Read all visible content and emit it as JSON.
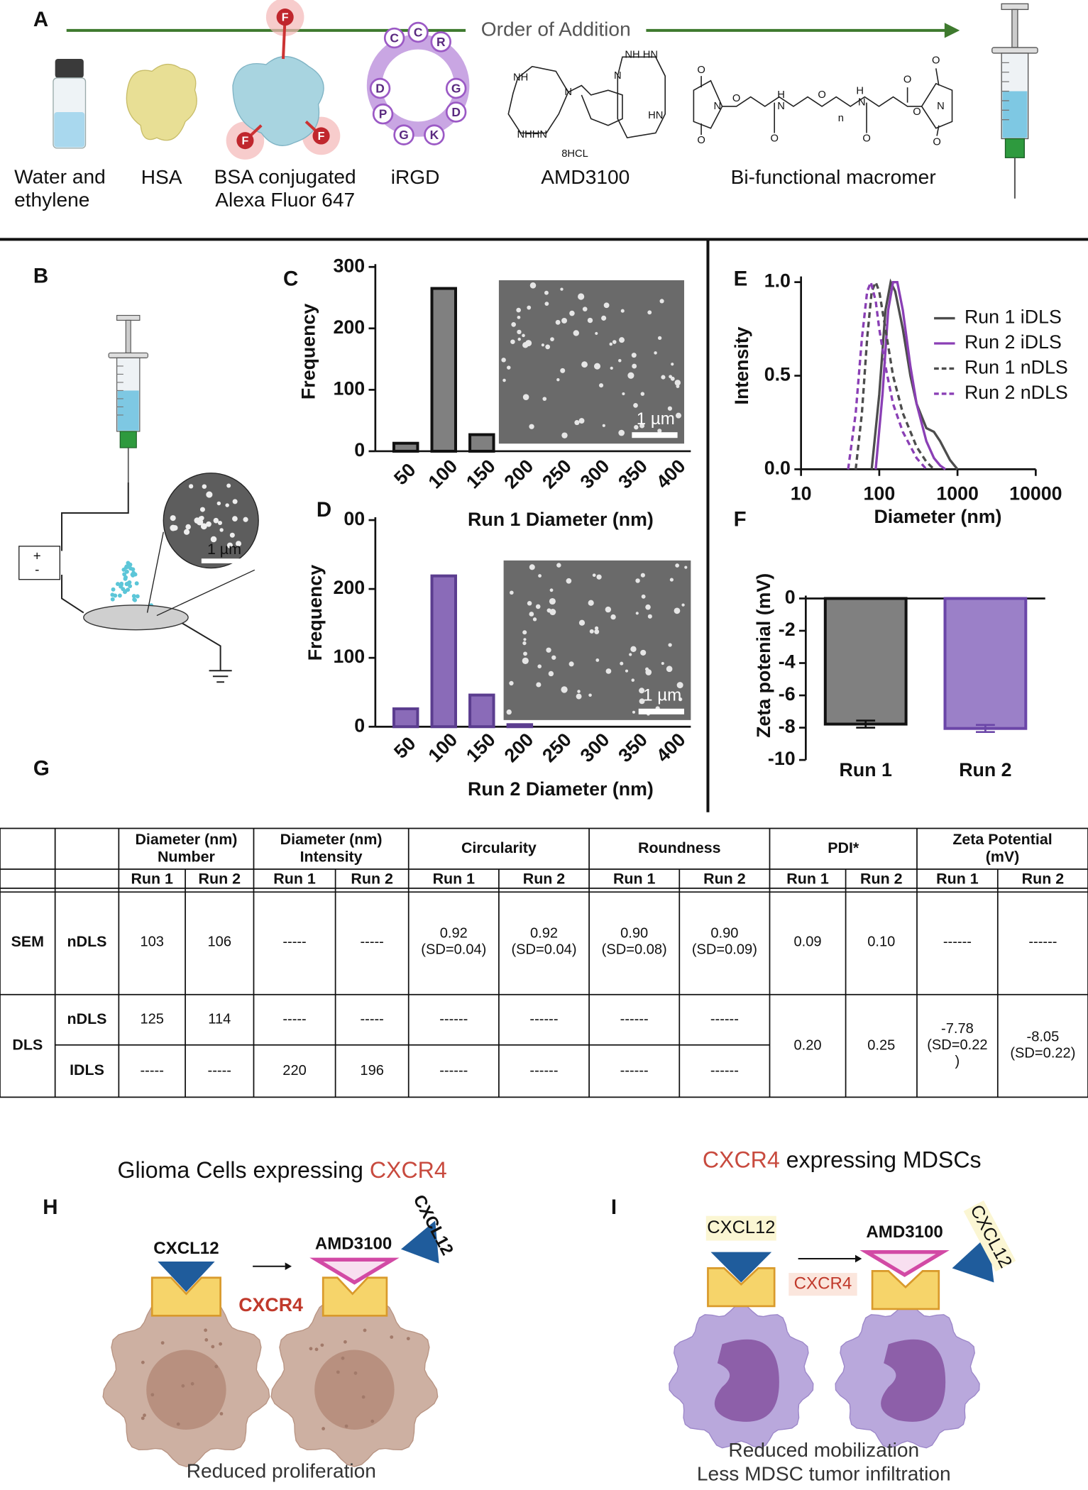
{
  "panel_a": {
    "label": "A",
    "arrow_label": "Order of Addition",
    "items": [
      "Water and\nethylene",
      "HSA",
      "BSA conjugated\nAlexa Fluor 647",
      "iRGD",
      "AMD3100",
      "Bi-functional macromer"
    ],
    "bsa_fluor_labels": [
      "F",
      "F",
      "F"
    ],
    "irgd_letters": [
      "C",
      "C",
      "R",
      "G",
      "D",
      "K",
      "G",
      "P",
      "D"
    ],
    "amd3100_labels": [
      "NH HN",
      "N",
      "NH",
      "NHHN",
      "N",
      "HN",
      "8HCL"
    ],
    "macromer_labels": [
      "O",
      "N",
      "O",
      "O",
      "O",
      "N",
      "H",
      "O",
      "n",
      "H",
      "N",
      "O",
      "O",
      "O",
      "N",
      "O",
      "O"
    ]
  },
  "panel_b": {
    "label": "B",
    "plus": "+",
    "minus": "-",
    "scale_label": "1 µm"
  },
  "chart_data": [
    {
      "type": "bar",
      "panel_label": "C",
      "ylabel": "Frequency",
      "xlabel": "Run 1 Diameter  (nm)",
      "categories": [
        "50",
        "100",
        "150",
        "200",
        "250",
        "300",
        "350",
        "400"
      ],
      "values": [
        13,
        265,
        27,
        0,
        0,
        0,
        0,
        0
      ],
      "ylim": [
        0,
        300
      ],
      "yticks": [
        0,
        100,
        200,
        300
      ],
      "color": "#808080",
      "edge_color": "#111111",
      "inset_label": "1 µm"
    },
    {
      "type": "bar",
      "panel_label": "D",
      "ylabel": "Frequency",
      "xlabel": "Run 2 Diameter  (nm)",
      "categories": [
        "50",
        "100",
        "150",
        "200",
        "250",
        "300",
        "350",
        "400"
      ],
      "values": [
        26,
        219,
        46,
        3,
        0,
        0,
        0,
        0
      ],
      "ylim": [
        0,
        300
      ],
      "yticks": [
        0,
        100,
        200,
        {
          "value": 300,
          "label": "00"
        }
      ],
      "color": "#8a6bb8",
      "edge_color": "#5b3d8f",
      "inset_label": "1 µm"
    },
    {
      "type": "line",
      "panel_label": "E",
      "ylabel": "Intensity",
      "xlabel": "Diameter  (nm)",
      "xlog": true,
      "xlim": [
        10,
        10000
      ],
      "xticks": [
        10,
        100,
        1000,
        10000
      ],
      "ylim": [
        0,
        1
      ],
      "yticks": [
        {
          "value": 0,
          "label": "0.0"
        },
        {
          "value": 0.5,
          "label": "0.5"
        },
        {
          "value": 1,
          "label": "1.0"
        }
      ],
      "legend": "upper right",
      "series": [
        {
          "name": "Run 1 iDLS",
          "color": "#4d4d4d",
          "dash": "solid",
          "x": [
            80,
            100,
            120,
            140,
            160,
            200,
            250,
            300,
            400,
            500,
            600,
            800,
            1000
          ],
          "values": [
            0,
            0.4,
            0.85,
            1.0,
            0.95,
            0.75,
            0.5,
            0.35,
            0.22,
            0.2,
            0.15,
            0.05,
            0
          ]
        },
        {
          "name": "Run 2 iDLS",
          "color": "#8a3fb5",
          "dash": "solid",
          "x": [
            90,
            110,
            130,
            150,
            170,
            200,
            250,
            300,
            400,
            500,
            600,
            700
          ],
          "values": [
            0,
            0.4,
            0.85,
            1.0,
            1.0,
            0.85,
            0.55,
            0.35,
            0.15,
            0.06,
            0.02,
            0
          ]
        },
        {
          "name": "Run 1 nDLS",
          "color": "#4d4d4d",
          "dash": "dashed",
          "x": [
            50,
            60,
            70,
            80,
            90,
            100,
            120,
            150,
            200,
            300,
            400,
            500
          ],
          "values": [
            0,
            0.3,
            0.7,
            0.95,
            1.0,
            0.95,
            0.75,
            0.5,
            0.3,
            0.12,
            0.04,
            0
          ]
        },
        {
          "name": "Run 2 nDLS",
          "color": "#8a3fb5",
          "dash": "dashed",
          "x": [
            40,
            50,
            60,
            70,
            78,
            90,
            100,
            120,
            150,
            200,
            300,
            400
          ],
          "values": [
            0,
            0.3,
            0.7,
            0.95,
            1.0,
            0.9,
            0.75,
            0.55,
            0.35,
            0.2,
            0.06,
            0
          ]
        }
      ]
    },
    {
      "type": "bar",
      "panel_label": "F",
      "ylabel": "Zeta potenial (mV)",
      "categories": [
        "Run 1",
        "Run 2"
      ],
      "values": [
        -7.78,
        -8.05
      ],
      "errors": [
        0.22,
        0.22
      ],
      "ylim": [
        -10,
        0
      ],
      "yticks": [
        0,
        -2,
        -4,
        -6,
        -8,
        -10
      ],
      "colors": [
        "#808080",
        "#9b80c8"
      ],
      "edge_colors": [
        "#111111",
        "#6b46a8"
      ]
    }
  ],
  "table": {
    "label": "G",
    "header_top": [
      "Diameter  (nm)\nNumber",
      "Diameter  (nm)\nIntensity",
      "Circularity",
      "Roundness",
      "PDI*",
      "Zeta Potential\n(mV)"
    ],
    "header_runs": [
      "Run 1",
      "Run 2",
      "Run 1",
      "Run 2",
      "Run 1",
      "Run 2",
      "Run 1",
      "Run 2",
      "Run 1",
      "Run 2",
      "Run 1",
      "Run 2"
    ],
    "rows": [
      {
        "group": "SEM",
        "method": "nDLS",
        "cells": [
          "103",
          "106",
          "-----",
          "-----",
          "0.92\n(SD=0.04)",
          "0.92\n(SD=0.04)",
          "0.90\n(SD=0.08)",
          "0.90\n(SD=0.09)",
          "0.09",
          "0.10",
          "------",
          "------"
        ]
      },
      {
        "group": "DLS",
        "method": "nDLS",
        "cells": [
          "125",
          "114",
          "-----",
          "-----",
          "------",
          "------",
          "------",
          "------",
          "0.20",
          "0.25",
          "-7.78\n(SD=0.22\n)",
          "-8.05\n(SD=0.22)"
        ]
      },
      {
        "method": "IDLS",
        "cells": [
          "-----",
          "-----",
          "220",
          "196",
          "------",
          "------",
          "------",
          "------"
        ]
      }
    ]
  },
  "panel_h": {
    "label": "H",
    "title": "Glioma Cells expressing ",
    "title_highlight": "CXCR4",
    "ligand": "CXCL12",
    "drug": "AMD3100",
    "ligand_free": "CXCL12",
    "receptor": "CXCR4",
    "caption": "Reduced proliferation"
  },
  "panel_i": {
    "label": "I",
    "title_highlight": "CXCR4",
    "title": " expressing MDSCs",
    "ligand": "CXCL12",
    "drug": "AMD3100",
    "ligand_free": "CXCL12",
    "receptor": "CXCR4",
    "caption": [
      "Reduced mobilization",
      "Less MDSC tumor infiltration"
    ]
  }
}
